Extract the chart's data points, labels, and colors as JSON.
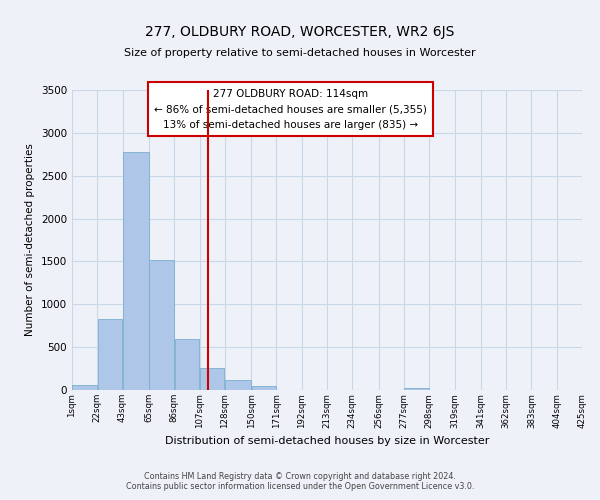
{
  "title": "277, OLDBURY ROAD, WORCESTER, WR2 6JS",
  "subtitle": "Size of property relative to semi-detached houses in Worcester",
  "xlabel": "Distribution of semi-detached houses by size in Worcester",
  "ylabel": "Number of semi-detached properties",
  "footnote1": "Contains HM Land Registry data © Crown copyright and database right 2024.",
  "footnote2": "Contains public sector information licensed under the Open Government Licence v3.0.",
  "bar_left_edges": [
    1,
    22,
    43,
    65,
    86,
    107,
    128,
    150,
    171,
    192,
    213,
    234,
    256,
    277,
    298,
    319,
    341,
    362,
    383,
    404
  ],
  "bar_widths": [
    21,
    21,
    22,
    21,
    21,
    21,
    22,
    21,
    21,
    21,
    21,
    22,
    21,
    21,
    21,
    22,
    21,
    21,
    21,
    21
  ],
  "bar_heights": [
    60,
    830,
    2780,
    1520,
    600,
    260,
    115,
    50,
    0,
    0,
    0,
    0,
    0,
    25,
    0,
    0,
    0,
    0,
    0,
    0
  ],
  "bar_color": "#aec6e8",
  "bar_edge_color": "#7aaed0",
  "vline_x": 114,
  "vline_color": "#cc0000",
  "annotation_title": "277 OLDBURY ROAD: 114sqm",
  "annotation_line1": "← 86% of semi-detached houses are smaller (5,355)",
  "annotation_line2": "13% of semi-detached houses are larger (835) →",
  "ylim": [
    0,
    3500
  ],
  "xlim": [
    1,
    425
  ],
  "xtick_positions": [
    1,
    22,
    43,
    65,
    86,
    107,
    128,
    150,
    171,
    192,
    213,
    234,
    256,
    277,
    298,
    319,
    341,
    362,
    383,
    404,
    425
  ],
  "xtick_labels": [
    "1sqm",
    "22sqm",
    "43sqm",
    "65sqm",
    "86sqm",
    "107sqm",
    "128sqm",
    "150sqm",
    "171sqm",
    "192sqm",
    "213sqm",
    "234sqm",
    "256sqm",
    "277sqm",
    "298sqm",
    "319sqm",
    "341sqm",
    "362sqm",
    "383sqm",
    "404sqm",
    "425sqm"
  ],
  "ytick_positions": [
    0,
    500,
    1000,
    1500,
    2000,
    2500,
    3000,
    3500
  ],
  "grid_color": "#c8d8e8",
  "background_color": "#eef2f8"
}
